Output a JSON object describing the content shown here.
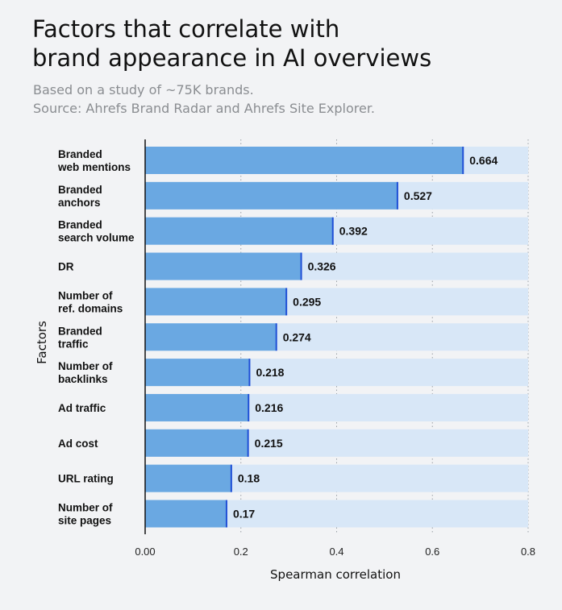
{
  "header": {
    "title_line1": "Factors that correlate with",
    "title_line2": "brand appearance in AI overviews",
    "subtitle_line1": "Based on a study of ~75K brands.",
    "subtitle_line2": "Source: Ahrefs Brand Radar and Ahrefs Site Explorer."
  },
  "colors": {
    "bar": "#6aa8e2",
    "track": "#d8e7f7",
    "bar_edge": "#1f4fd6",
    "background": "#f2f3f5"
  },
  "chart_data": {
    "type": "bar",
    "orientation": "horizontal",
    "categories": [
      [
        "Branded",
        "web mentions"
      ],
      [
        "Branded",
        "anchors"
      ],
      [
        "Branded",
        "search volume"
      ],
      [
        "DR"
      ],
      [
        "Number of",
        "ref. domains"
      ],
      [
        "Branded",
        "traffic"
      ],
      [
        "Number of",
        "backlinks"
      ],
      [
        "Ad traffic"
      ],
      [
        "Ad cost"
      ],
      [
        "URL rating"
      ],
      [
        "Number of",
        "site pages"
      ]
    ],
    "values": [
      0.664,
      0.527,
      0.392,
      0.326,
      0.295,
      0.274,
      0.218,
      0.216,
      0.215,
      0.18,
      0.17
    ],
    "value_labels": [
      "0.664",
      "0.527",
      "0.392",
      "0.326",
      "0.295",
      "0.274",
      "0.218",
      "0.216",
      "0.215",
      "0.18",
      "0.17"
    ],
    "xlabel": "Spearman correlation",
    "ylabel": "Factors",
    "xlim": [
      0,
      0.8
    ],
    "xticks": [
      0,
      0.2,
      0.4,
      0.6,
      0.8
    ],
    "xtick_labels": [
      "0.00",
      "0.2",
      "0.4",
      "0.6",
      "0.8"
    ],
    "grid": "vertical dotted"
  }
}
